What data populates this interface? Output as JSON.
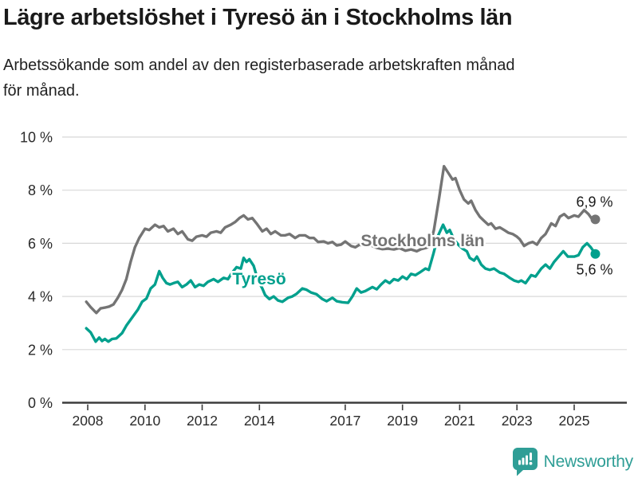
{
  "header": {
    "title": "Lägre arbetslöshet i Tyresö än i Stockholms län",
    "subtitle": "Arbetssökande som andel av den registerbaserade arbetskraften månad för månad."
  },
  "chart_data": {
    "type": "line",
    "title": "Lägre arbetslöshet i Tyresö än i Stockholms län",
    "subtitle": "Arbetssökande som andel av den registerbaserade arbetskraften månad för månad.",
    "unit": "%",
    "grid": true,
    "legend_position": "inline-labels",
    "x_axis": {
      "tick_years": [
        2008,
        2010,
        2012,
        2014,
        2017,
        2019,
        2021,
        2023,
        2025
      ],
      "range": [
        2007.8,
        2026.3
      ]
    },
    "y_axis": {
      "tick_values": [
        0,
        2,
        4,
        6,
        8,
        10
      ],
      "tick_labels": [
        "0 %",
        "2 %",
        "4 %",
        "6 %",
        "8 %",
        "10 %"
      ],
      "range": [
        0,
        10
      ]
    },
    "colors": {
      "stockholm_gray": "#747474",
      "tyreso_teal": "#00a08d",
      "gridline": "#d8d8d8",
      "axis": "#3d3d3d",
      "text": "#2a2a2a",
      "end_label_text": "#1a1a1a"
    },
    "series": [
      {
        "name": "Stockholms län",
        "color": "#747474",
        "end_label": "6,9 %",
        "end_value": 6.9,
        "points": [
          [
            2007.95,
            3.8
          ],
          [
            2008.1,
            3.6
          ],
          [
            2008.3,
            3.38
          ],
          [
            2008.45,
            3.55
          ],
          [
            2008.6,
            3.58
          ],
          [
            2008.75,
            3.62
          ],
          [
            2008.9,
            3.7
          ],
          [
            2009.05,
            3.95
          ],
          [
            2009.2,
            4.25
          ],
          [
            2009.35,
            4.65
          ],
          [
            2009.5,
            5.3
          ],
          [
            2009.65,
            5.85
          ],
          [
            2009.8,
            6.2
          ],
          [
            2010.0,
            6.55
          ],
          [
            2010.15,
            6.5
          ],
          [
            2010.35,
            6.7
          ],
          [
            2010.5,
            6.6
          ],
          [
            2010.65,
            6.65
          ],
          [
            2010.8,
            6.45
          ],
          [
            2011.0,
            6.55
          ],
          [
            2011.15,
            6.35
          ],
          [
            2011.3,
            6.45
          ],
          [
            2011.5,
            6.15
          ],
          [
            2011.65,
            6.1
          ],
          [
            2011.8,
            6.25
          ],
          [
            2012.0,
            6.3
          ],
          [
            2012.15,
            6.25
          ],
          [
            2012.3,
            6.4
          ],
          [
            2012.5,
            6.45
          ],
          [
            2012.65,
            6.4
          ],
          [
            2012.8,
            6.6
          ],
          [
            2013.0,
            6.7
          ],
          [
            2013.15,
            6.8
          ],
          [
            2013.3,
            6.95
          ],
          [
            2013.45,
            7.05
          ],
          [
            2013.6,
            6.9
          ],
          [
            2013.75,
            6.95
          ],
          [
            2013.9,
            6.75
          ],
          [
            2014.1,
            6.45
          ],
          [
            2014.25,
            6.55
          ],
          [
            2014.4,
            6.35
          ],
          [
            2014.55,
            6.45
          ],
          [
            2014.75,
            6.3
          ],
          [
            2014.9,
            6.3
          ],
          [
            2015.05,
            6.35
          ],
          [
            2015.25,
            6.2
          ],
          [
            2015.4,
            6.3
          ],
          [
            2015.6,
            6.3
          ],
          [
            2015.75,
            6.2
          ],
          [
            2015.9,
            6.2
          ],
          [
            2016.05,
            6.05
          ],
          [
            2016.25,
            6.07
          ],
          [
            2016.4,
            6.0
          ],
          [
            2016.55,
            6.05
          ],
          [
            2016.7,
            5.92
          ],
          [
            2016.85,
            5.95
          ],
          [
            2017.0,
            6.07
          ],
          [
            2017.2,
            5.9
          ],
          [
            2017.35,
            5.85
          ],
          [
            2017.5,
            5.95
          ],
          [
            2017.7,
            5.88
          ],
          [
            2017.9,
            5.92
          ],
          [
            2018.1,
            5.83
          ],
          [
            2018.3,
            5.78
          ],
          [
            2018.5,
            5.8
          ],
          [
            2018.7,
            5.77
          ],
          [
            2018.9,
            5.82
          ],
          [
            2019.1,
            5.72
          ],
          [
            2019.3,
            5.77
          ],
          [
            2019.5,
            5.7
          ],
          [
            2019.65,
            5.78
          ],
          [
            2019.8,
            5.82
          ],
          [
            2019.95,
            5.88
          ],
          [
            2020.1,
            6.5
          ],
          [
            2020.28,
            7.7
          ],
          [
            2020.45,
            8.9
          ],
          [
            2020.6,
            8.65
          ],
          [
            2020.75,
            8.4
          ],
          [
            2020.85,
            8.45
          ],
          [
            2021.0,
            8.0
          ],
          [
            2021.15,
            7.65
          ],
          [
            2021.3,
            7.5
          ],
          [
            2021.4,
            7.6
          ],
          [
            2021.55,
            7.25
          ],
          [
            2021.7,
            7.0
          ],
          [
            2021.85,
            6.85
          ],
          [
            2022.0,
            6.7
          ],
          [
            2022.1,
            6.75
          ],
          [
            2022.25,
            6.55
          ],
          [
            2022.4,
            6.6
          ],
          [
            2022.55,
            6.5
          ],
          [
            2022.7,
            6.4
          ],
          [
            2022.85,
            6.35
          ],
          [
            2023.0,
            6.25
          ],
          [
            2023.1,
            6.15
          ],
          [
            2023.25,
            5.9
          ],
          [
            2023.4,
            6.0
          ],
          [
            2023.55,
            6.05
          ],
          [
            2023.7,
            5.95
          ],
          [
            2023.85,
            6.2
          ],
          [
            2024.0,
            6.35
          ],
          [
            2024.1,
            6.55
          ],
          [
            2024.2,
            6.75
          ],
          [
            2024.35,
            6.65
          ],
          [
            2024.5,
            7.0
          ],
          [
            2024.65,
            7.1
          ],
          [
            2024.8,
            6.95
          ],
          [
            2025.0,
            7.05
          ],
          [
            2025.15,
            7.0
          ],
          [
            2025.35,
            7.25
          ],
          [
            2025.5,
            7.1
          ],
          [
            2025.6,
            6.95
          ],
          [
            2025.74,
            6.9
          ]
        ]
      },
      {
        "name": "Tyresö",
        "color": "#00a08d",
        "end_label": "5,6 %",
        "end_value": 5.6,
        "points": [
          [
            2007.95,
            2.8
          ],
          [
            2008.1,
            2.65
          ],
          [
            2008.28,
            2.3
          ],
          [
            2008.4,
            2.45
          ],
          [
            2008.5,
            2.32
          ],
          [
            2008.6,
            2.4
          ],
          [
            2008.72,
            2.3
          ],
          [
            2008.85,
            2.4
          ],
          [
            2009.0,
            2.42
          ],
          [
            2009.2,
            2.62
          ],
          [
            2009.35,
            2.9
          ],
          [
            2009.55,
            3.2
          ],
          [
            2009.75,
            3.5
          ],
          [
            2009.9,
            3.8
          ],
          [
            2010.05,
            3.92
          ],
          [
            2010.2,
            4.3
          ],
          [
            2010.35,
            4.45
          ],
          [
            2010.5,
            4.95
          ],
          [
            2010.62,
            4.7
          ],
          [
            2010.75,
            4.5
          ],
          [
            2010.88,
            4.45
          ],
          [
            2011.0,
            4.5
          ],
          [
            2011.15,
            4.55
          ],
          [
            2011.3,
            4.35
          ],
          [
            2011.45,
            4.45
          ],
          [
            2011.6,
            4.6
          ],
          [
            2011.75,
            4.35
          ],
          [
            2011.9,
            4.45
          ],
          [
            2012.05,
            4.4
          ],
          [
            2012.2,
            4.55
          ],
          [
            2012.4,
            4.65
          ],
          [
            2012.55,
            4.55
          ],
          [
            2012.75,
            4.7
          ],
          [
            2012.9,
            4.65
          ],
          [
            2013.05,
            4.9
          ],
          [
            2013.2,
            5.1
          ],
          [
            2013.35,
            5.05
          ],
          [
            2013.45,
            5.45
          ],
          [
            2013.55,
            5.3
          ],
          [
            2013.65,
            5.4
          ],
          [
            2013.8,
            5.15
          ],
          [
            2013.95,
            4.6
          ],
          [
            2014.1,
            4.3
          ],
          [
            2014.2,
            4.05
          ],
          [
            2014.35,
            3.9
          ],
          [
            2014.5,
            4.0
          ],
          [
            2014.65,
            3.85
          ],
          [
            2014.8,
            3.8
          ],
          [
            2015.0,
            3.95
          ],
          [
            2015.15,
            4.0
          ],
          [
            2015.3,
            4.1
          ],
          [
            2015.5,
            4.3
          ],
          [
            2015.65,
            4.25
          ],
          [
            2015.8,
            4.15
          ],
          [
            2016.0,
            4.08
          ],
          [
            2016.2,
            3.9
          ],
          [
            2016.35,
            3.82
          ],
          [
            2016.55,
            3.95
          ],
          [
            2016.7,
            3.82
          ],
          [
            2016.9,
            3.78
          ],
          [
            2017.1,
            3.76
          ],
          [
            2017.25,
            4.0
          ],
          [
            2017.4,
            4.3
          ],
          [
            2017.55,
            4.15
          ],
          [
            2017.7,
            4.2
          ],
          [
            2017.95,
            4.35
          ],
          [
            2018.1,
            4.27
          ],
          [
            2018.25,
            4.45
          ],
          [
            2018.4,
            4.6
          ],
          [
            2018.55,
            4.5
          ],
          [
            2018.7,
            4.65
          ],
          [
            2018.85,
            4.6
          ],
          [
            2019.0,
            4.75
          ],
          [
            2019.15,
            4.65
          ],
          [
            2019.3,
            4.85
          ],
          [
            2019.45,
            4.8
          ],
          [
            2019.6,
            4.9
          ],
          [
            2019.8,
            5.05
          ],
          [
            2019.92,
            5.0
          ],
          [
            2020.08,
            5.6
          ],
          [
            2020.25,
            6.3
          ],
          [
            2020.42,
            6.7
          ],
          [
            2020.55,
            6.4
          ],
          [
            2020.65,
            6.5
          ],
          [
            2020.8,
            6.15
          ],
          [
            2020.95,
            5.95
          ],
          [
            2021.1,
            5.8
          ],
          [
            2021.25,
            5.7
          ],
          [
            2021.35,
            5.45
          ],
          [
            2021.5,
            5.35
          ],
          [
            2021.6,
            5.5
          ],
          [
            2021.75,
            5.2
          ],
          [
            2021.9,
            5.05
          ],
          [
            2022.05,
            5.0
          ],
          [
            2022.2,
            5.05
          ],
          [
            2022.4,
            4.9
          ],
          [
            2022.55,
            4.85
          ],
          [
            2022.75,
            4.7
          ],
          [
            2022.9,
            4.6
          ],
          [
            2023.05,
            4.55
          ],
          [
            2023.15,
            4.6
          ],
          [
            2023.3,
            4.5
          ],
          [
            2023.5,
            4.8
          ],
          [
            2023.65,
            4.75
          ],
          [
            2023.85,
            5.05
          ],
          [
            2024.0,
            5.2
          ],
          [
            2024.15,
            5.05
          ],
          [
            2024.3,
            5.3
          ],
          [
            2024.5,
            5.55
          ],
          [
            2024.62,
            5.7
          ],
          [
            2024.78,
            5.5
          ],
          [
            2025.0,
            5.5
          ],
          [
            2025.15,
            5.55
          ],
          [
            2025.3,
            5.85
          ],
          [
            2025.45,
            6.0
          ],
          [
            2025.58,
            5.85
          ],
          [
            2025.74,
            5.6
          ]
        ]
      }
    ]
  },
  "footer": {
    "brand": "Newsworthy"
  }
}
